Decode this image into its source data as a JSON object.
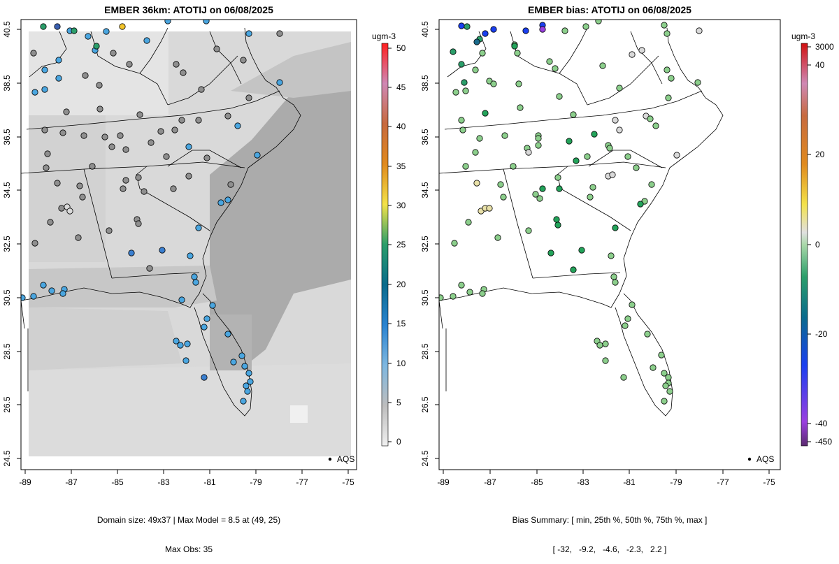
{
  "left_panel": {
    "title": "EMBER 36km: ATOTIJ on 06/08/2025",
    "footer_line1": "Domain size: 49x37 | Max Model = 8.5 at (49, 25)",
    "footer_line2": "Max Obs: 35",
    "legend_label": "AQS",
    "colorbar_unit": "ugm-3",
    "colorbar_ticks": [
      "0",
      "5",
      "10",
      "15",
      "20",
      "25",
      "30",
      "35",
      "40",
      "45",
      "50"
    ]
  },
  "right_panel": {
    "title": "EMBER bias: ATOTIJ on 06/08/2025",
    "footer_line1": "Bias Summary: [ min, 25th %, 50th %, 75th %, max ]",
    "footer_line2": "[ -32,   -9.2,   -4.6,   -2.3,   2.2 ]",
    "legend_label": "AQS",
    "colorbar_unit": "ugm-3",
    "colorbar_ticks": [
      "-450",
      "-40",
      "-20",
      "0",
      "20",
      "40",
      "3000"
    ]
  },
  "axes": {
    "x_ticks": [
      "-89",
      "-87",
      "-85",
      "-83",
      "-81",
      "-79",
      "-77",
      "-75"
    ],
    "y_ticks": [
      "24.5",
      "26.5",
      "28.5",
      "30.5",
      "32.5",
      "34.5",
      "36.5",
      "38.5",
      "40.5"
    ],
    "xlim": [
      -89.2,
      -74.6
    ],
    "ylim": [
      24.3,
      40.8
    ]
  },
  "colors": {
    "model_fill_light": "#dedede",
    "model_fill_mid": "#cdcdcd",
    "model_fill_dark": "#a9a9a9",
    "obs_blue": "#4aa6e0",
    "obs_gray": "#8f8f8f",
    "bias_green": "#8ccf8c",
    "bias_dark_green": "#23a35a"
  }
}
